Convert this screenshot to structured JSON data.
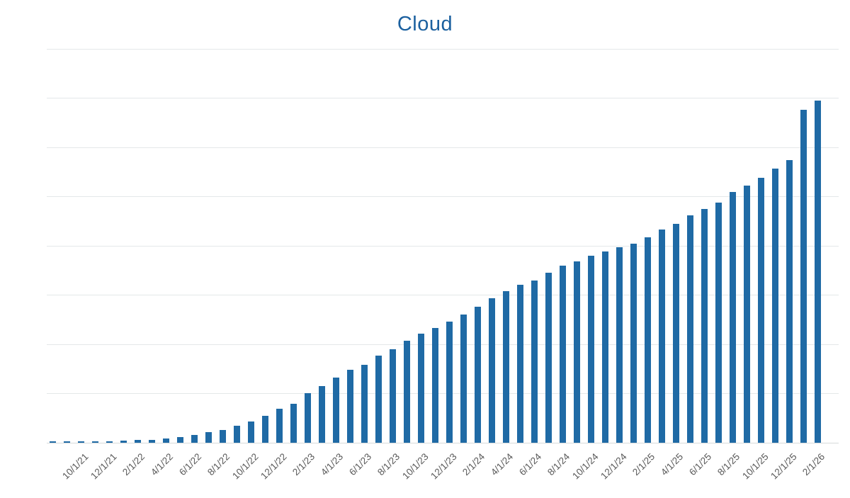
{
  "title": "Cloud",
  "colors": {
    "title": "#1b609f",
    "bar": "#1f6aa5",
    "gridline": "#e4e8e9",
    "axis_line": "#d6dadb",
    "tick_label": "#595959",
    "background": "#ffffff"
  },
  "chart_data": {
    "type": "bar",
    "title": "Cloud",
    "xlabel": "",
    "ylabel": "",
    "legend": false,
    "grid": true,
    "y_tick_labels": [],
    "ylim": [
      0,
      8
    ],
    "value_units": "gridline intervals (y axis is unlabeled; 8 horizontal gridline intervals visible; values estimated from gridlines)",
    "x": [
      "8/1/21",
      "9/1/21",
      "10/1/21",
      "11/1/21",
      "12/1/21",
      "1/1/22",
      "2/1/22",
      "3/1/22",
      "4/1/22",
      "5/1/22",
      "6/1/22",
      "7/1/22",
      "8/1/22",
      "9/1/22",
      "10/1/22",
      "11/1/22",
      "12/1/22",
      "1/1/23",
      "2/1/23",
      "3/1/23",
      "4/1/23",
      "5/1/23",
      "6/1/23",
      "7/1/23",
      "8/1/23",
      "9/1/23",
      "10/1/23",
      "11/1/23",
      "12/1/23",
      "1/1/24",
      "2/1/24",
      "3/1/24",
      "4/1/24",
      "5/1/24",
      "6/1/24",
      "7/1/24",
      "8/1/24",
      "9/1/24",
      "10/1/24",
      "11/1/24",
      "12/1/24",
      "1/1/25",
      "2/1/25",
      "3/1/25",
      "4/1/25",
      "5/1/25",
      "6/1/25",
      "7/1/25",
      "8/1/25",
      "9/1/25",
      "10/1/25",
      "11/1/25",
      "12/1/25",
      "1/1/26",
      "2/1/26"
    ],
    "values": [
      0.03,
      0.03,
      0.03,
      0.03,
      0.03,
      0.04,
      0.06,
      0.06,
      0.09,
      0.12,
      0.16,
      0.22,
      0.26,
      0.35,
      0.43,
      0.55,
      0.69,
      0.79,
      1.01,
      1.15,
      1.32,
      1.48,
      1.58,
      1.77,
      1.9,
      2.07,
      2.22,
      2.33,
      2.46,
      2.6,
      2.76,
      2.94,
      3.08,
      3.21,
      3.29,
      3.45,
      3.6,
      3.68,
      3.8,
      3.88,
      3.97,
      4.04,
      4.17,
      4.33,
      4.45,
      4.62,
      4.75,
      4.88,
      5.09,
      5.22,
      5.38,
      5.57,
      5.74,
      6.76,
      6.95
    ],
    "x_tick_labels": [
      "10/1/21",
      "12/1/21",
      "2/1/22",
      "4/1/22",
      "6/1/22",
      "8/1/22",
      "10/1/22",
      "12/1/22",
      "2/1/23",
      "4/1/23",
      "6/1/23",
      "8/1/23",
      "10/1/23",
      "12/1/23",
      "2/1/24",
      "4/1/24",
      "6/1/24",
      "8/1/24",
      "10/1/24",
      "12/1/24",
      "2/1/25",
      "4/1/25",
      "6/1/25",
      "8/1/25",
      "10/1/25",
      "12/1/25",
      "2/1/26"
    ],
    "x_tick_interval": 2,
    "x_tick_first_index": 2,
    "legend_position": "none"
  }
}
